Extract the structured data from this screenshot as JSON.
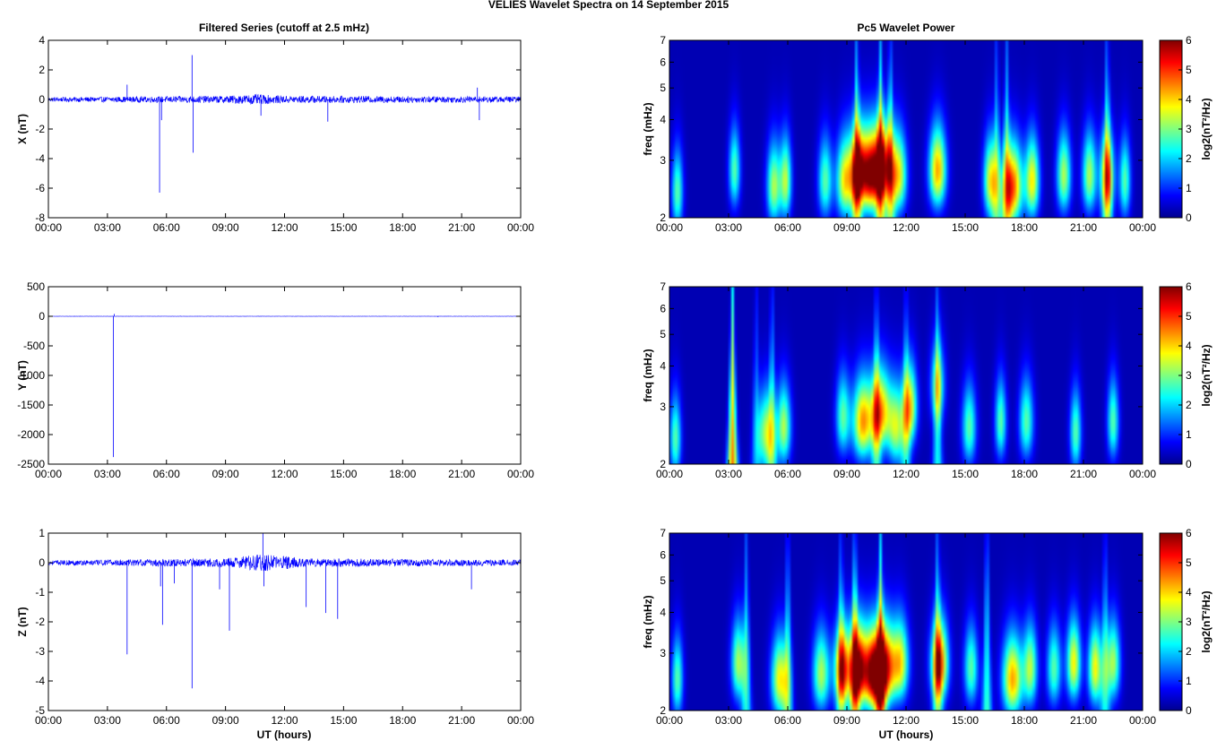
{
  "figure": {
    "suptitle": "VELIES Wavelet Spectra on 14 September 2015",
    "left_title": "Filtered Series (cutoff at 2.5 mHz)",
    "right_title": "Pc5 Wavelet Power",
    "xlabel": "UT (hours)"
  },
  "chart_data": [
    {
      "id": "x-series",
      "type": "line",
      "ylabel": "X (nT)",
      "ylim": [
        -8,
        4
      ],
      "yticks": [
        "4",
        "2",
        "0",
        "-2",
        "-4",
        "-6",
        "-8"
      ],
      "xlim_hours": [
        0,
        24
      ],
      "xticks": [
        "00:00",
        "03:00",
        "06:00",
        "09:00",
        "12:00",
        "15:00",
        "18:00",
        "21:00",
        "00:00"
      ],
      "color": "#0000ff",
      "noise_envelope": [
        [
          0,
          0.15
        ],
        [
          9,
          0.25
        ],
        [
          10.5,
          0.35
        ],
        [
          12,
          0.25
        ],
        [
          24,
          0.2
        ]
      ],
      "spikes": [
        [
          4.0,
          1.0
        ],
        [
          5.65,
          -6.3
        ],
        [
          5.75,
          -1.4
        ],
        [
          7.3,
          3.0
        ],
        [
          7.35,
          -3.6
        ],
        [
          10.8,
          -1.1
        ],
        [
          14.2,
          -1.5
        ],
        [
          21.8,
          0.8
        ],
        [
          21.9,
          -1.4
        ]
      ]
    },
    {
      "id": "y-series",
      "type": "line",
      "ylabel": "Y (nT)",
      "ylim": [
        -2500,
        500
      ],
      "yticks": [
        "500",
        "0",
        "-500",
        "-1000",
        "-1500",
        "-2000",
        "-2500"
      ],
      "xlim_hours": [
        0,
        24
      ],
      "xticks": [
        "00:00",
        "03:00",
        "06:00",
        "09:00",
        "12:00",
        "15:00",
        "18:00",
        "21:00",
        "00:00"
      ],
      "color": "#0000ff",
      "noise_envelope": [
        [
          0,
          2
        ],
        [
          24,
          2
        ]
      ],
      "spikes": [
        [
          3.3,
          -2380
        ],
        [
          3.35,
          40
        ],
        [
          19.8,
          -15
        ]
      ]
    },
    {
      "id": "z-series",
      "type": "line",
      "ylabel": "Z (nT)",
      "ylim": [
        -5,
        1
      ],
      "yticks": [
        "1",
        "0",
        "-1",
        "-2",
        "-3",
        "-4",
        "-5"
      ],
      "xlim_hours": [
        0,
        24
      ],
      "xticks": [
        "00:00",
        "03:00",
        "06:00",
        "09:00",
        "12:00",
        "15:00",
        "18:00",
        "21:00",
        "00:00"
      ],
      "color": "#0000ff",
      "noise_envelope": [
        [
          0,
          0.08
        ],
        [
          9,
          0.15
        ],
        [
          11,
          0.3
        ],
        [
          13,
          0.15
        ],
        [
          24,
          0.1
        ]
      ],
      "spikes": [
        [
          4.0,
          -3.1
        ],
        [
          5.7,
          -0.8
        ],
        [
          5.8,
          -2.1
        ],
        [
          6.4,
          -0.7
        ],
        [
          7.3,
          -4.25
        ],
        [
          8.7,
          -0.9
        ],
        [
          9.2,
          -2.3
        ],
        [
          10.9,
          1.0
        ],
        [
          10.95,
          -0.8
        ],
        [
          13.1,
          -1.5
        ],
        [
          14.1,
          -1.7
        ],
        [
          14.7,
          -1.9
        ],
        [
          21.5,
          -0.9
        ]
      ]
    },
    {
      "id": "x-wavelet",
      "type": "heatmap",
      "ylabel": "freq (mHz)",
      "yscale": "log",
      "ylim": [
        2,
        7
      ],
      "yticks": [
        "7",
        "6",
        "5",
        "4",
        "3",
        "2"
      ],
      "xlim_hours": [
        0,
        24
      ],
      "xticks": [
        "00:00",
        "03:00",
        "06:00",
        "09:00",
        "12:00",
        "15:00",
        "18:00",
        "21:00",
        "00:00"
      ],
      "colorbar": {
        "label": "log2(nT²/Hz)",
        "ticks": [
          "6",
          "5",
          "4",
          "3",
          "2",
          "1",
          "0"
        ],
        "clim": [
          0,
          6
        ],
        "colormap": "jet"
      },
      "blobs": [
        [
          0.4,
          2.4,
          0.2,
          2.5
        ],
        [
          3.3,
          2.8,
          0.2,
          2.5
        ],
        [
          5.3,
          2.5,
          0.25,
          3.0
        ],
        [
          5.9,
          2.6,
          0.2,
          3.0
        ],
        [
          7.9,
          2.6,
          0.25,
          2.5
        ],
        [
          8.9,
          2.6,
          0.3,
          3.5
        ],
        [
          9.6,
          2.8,
          0.3,
          5.0
        ],
        [
          10.2,
          2.7,
          0.3,
          4.5
        ],
        [
          10.8,
          2.9,
          0.35,
          5.0
        ],
        [
          11.6,
          2.7,
          0.3,
          3.5
        ],
        [
          13.6,
          2.8,
          0.3,
          4.0
        ],
        [
          16.3,
          2.6,
          0.25,
          3.5
        ],
        [
          17.4,
          2.5,
          0.35,
          4.5
        ],
        [
          18.4,
          2.6,
          0.25,
          3.5
        ],
        [
          20.0,
          2.7,
          0.25,
          3.0
        ],
        [
          21.3,
          2.7,
          0.25,
          3.0
        ],
        [
          22.2,
          2.7,
          0.25,
          3.5
        ],
        [
          23.1,
          2.6,
          0.2,
          2.5
        ]
      ],
      "streaks": [
        [
          9.5,
          3.8
        ],
        [
          10.7,
          4.2
        ],
        [
          11.2,
          2.8
        ],
        [
          16.6,
          2.5
        ],
        [
          17.1,
          3.0
        ],
        [
          22.2,
          2.8
        ]
      ]
    },
    {
      "id": "y-wavelet",
      "type": "heatmap",
      "ylabel": "freq (mHz)",
      "yscale": "log",
      "ylim": [
        2,
        7
      ],
      "yticks": [
        "7",
        "6",
        "5",
        "4",
        "3",
        "2"
      ],
      "xlim_hours": [
        0,
        24
      ],
      "xticks": [
        "00:00",
        "03:00",
        "06:00",
        "09:00",
        "12:00",
        "15:00",
        "18:00",
        "21:00",
        "00:00"
      ],
      "colorbar": {
        "label": "log2(nT²/Hz)",
        "ticks": [
          "6",
          "5",
          "4",
          "3",
          "2",
          "1",
          "0"
        ],
        "clim": [
          0,
          6
        ],
        "colormap": "jet"
      },
      "blobs": [
        [
          0.3,
          2.4,
          0.2,
          2.5
        ],
        [
          4.9,
          2.5,
          0.3,
          3.0
        ],
        [
          5.8,
          2.6,
          0.25,
          3.0
        ],
        [
          8.8,
          2.8,
          0.25,
          2.5
        ],
        [
          9.8,
          2.7,
          0.35,
          4.0
        ],
        [
          10.7,
          2.9,
          0.35,
          4.0
        ],
        [
          11.5,
          2.6,
          0.3,
          3.0
        ],
        [
          12.2,
          3.0,
          0.25,
          3.5
        ],
        [
          13.6,
          3.5,
          0.25,
          2.5
        ],
        [
          15.2,
          2.6,
          0.25,
          2.5
        ],
        [
          16.8,
          2.7,
          0.2,
          2.5
        ],
        [
          18.1,
          2.7,
          0.25,
          2.5
        ],
        [
          20.6,
          2.5,
          0.2,
          2.5
        ],
        [
          22.5,
          2.7,
          0.2,
          2.5
        ]
      ],
      "streaks": [
        [
          3.2,
          6.0
        ],
        [
          4.4,
          2.0
        ],
        [
          5.2,
          2.0
        ],
        [
          10.5,
          2.5
        ],
        [
          12.0,
          2.8
        ],
        [
          13.6,
          2.2
        ]
      ]
    },
    {
      "id": "z-wavelet",
      "type": "heatmap",
      "ylabel": "freq (mHz)",
      "yscale": "log",
      "ylim": [
        2,
        7
      ],
      "yticks": [
        "7",
        "6",
        "5",
        "4",
        "3",
        "2"
      ],
      "xlim_hours": [
        0,
        24
      ],
      "xticks": [
        "00:00",
        "03:00",
        "06:00",
        "09:00",
        "12:00",
        "15:00",
        "18:00",
        "21:00",
        "00:00"
      ],
      "colorbar": {
        "label": "log2(nT²/Hz)",
        "ticks": [
          "6",
          "5",
          "4",
          "3",
          "2",
          "1",
          "0"
        ],
        "clim": [
          0,
          6
        ],
        "colormap": "jet"
      },
      "blobs": [
        [
          0.4,
          2.5,
          0.2,
          2.5
        ],
        [
          3.5,
          2.8,
          0.25,
          3.0
        ],
        [
          5.6,
          2.5,
          0.3,
          3.5
        ],
        [
          7.7,
          2.6,
          0.3,
          3.0
        ],
        [
          8.8,
          2.7,
          0.3,
          4.5
        ],
        [
          9.6,
          2.7,
          0.3,
          5.5
        ],
        [
          10.3,
          2.6,
          0.3,
          5.0
        ],
        [
          10.9,
          2.7,
          0.35,
          5.5
        ],
        [
          11.7,
          2.8,
          0.3,
          3.5
        ],
        [
          13.7,
          2.8,
          0.3,
          4.5
        ],
        [
          15.3,
          2.7,
          0.25,
          2.5
        ],
        [
          17.4,
          2.5,
          0.35,
          4.0
        ],
        [
          18.3,
          2.7,
          0.25,
          3.0
        ],
        [
          19.5,
          2.7,
          0.25,
          2.5
        ],
        [
          20.5,
          2.8,
          0.25,
          3.5
        ],
        [
          21.6,
          2.7,
          0.25,
          3.5
        ],
        [
          22.5,
          2.8,
          0.25,
          3.0
        ]
      ],
      "streaks": [
        [
          3.9,
          2.8
        ],
        [
          6.0,
          2.2
        ],
        [
          8.7,
          3.0
        ],
        [
          9.4,
          3.5
        ],
        [
          10.7,
          4.0
        ],
        [
          13.6,
          3.8
        ],
        [
          16.1,
          2.6
        ],
        [
          22.1,
          2.8
        ]
      ]
    }
  ]
}
